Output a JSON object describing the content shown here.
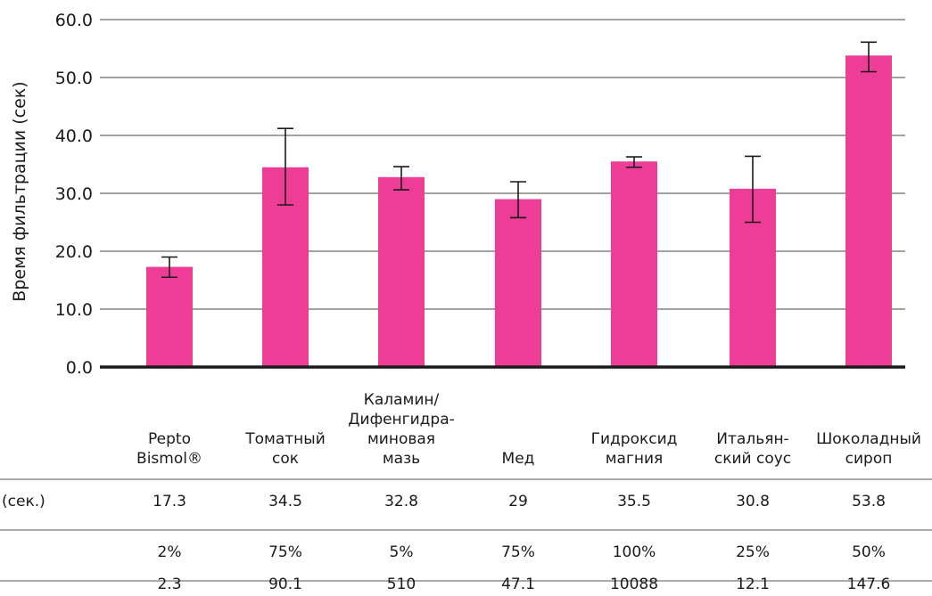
{
  "chart_data": {
    "type": "bar",
    "ylabel": "Время фильтрации (сек)",
    "ylim": [
      0,
      60
    ],
    "yticks": [
      "0.0",
      "10.0",
      "20.0",
      "30.0",
      "40.0",
      "50.0",
      "60.0"
    ],
    "grid": true,
    "bar_color": "#ee3d96",
    "categories": [
      [
        "Pepto",
        "Bismol®"
      ],
      [
        "Томатный",
        "сок"
      ],
      [
        "Каламин/",
        "Дифенгидра-",
        "миновая",
        "мазь"
      ],
      [
        "Мед"
      ],
      [
        "Гидроксид",
        "магния"
      ],
      [
        "Итальян-",
        "ский соус"
      ],
      [
        "Шоколадный",
        "сироп"
      ]
    ],
    "values": [
      17.3,
      34.5,
      32.8,
      29,
      35.5,
      30.8,
      53.8
    ],
    "error_low": [
      15.5,
      28.0,
      30.6,
      25.8,
      34.5,
      25.0,
      51.0
    ],
    "error_high": [
      19.0,
      41.2,
      34.6,
      32.0,
      36.3,
      36.4,
      56.1
    ]
  },
  "table": {
    "rows": [
      {
        "label": "(сек.)",
        "cells": [
          "17.3",
          "34.5",
          "32.8",
          "29",
          "35.5",
          "30.8",
          "53.8"
        ]
      },
      {
        "label": "",
        "cells": [
          "2%",
          "75%",
          "5%",
          "75%",
          "100%",
          "25%",
          "50%"
        ]
      },
      {
        "label": "",
        "cells": [
          "2.3",
          "90.1",
          "510",
          "47.1",
          "10088",
          "12.1",
          "147.6"
        ]
      }
    ]
  }
}
